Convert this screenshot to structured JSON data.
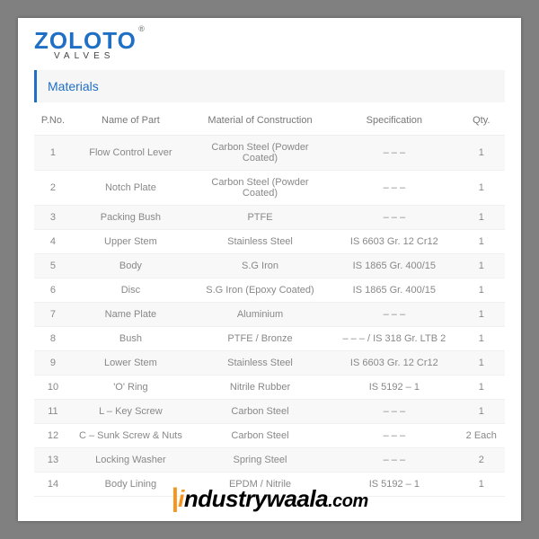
{
  "brand": {
    "name": "ZOLOTO",
    "sub": "VALVES"
  },
  "section_title": "Materials",
  "table": {
    "columns": [
      "P.No.",
      "Name of Part",
      "Material of Construction",
      "Specification",
      "Qty."
    ],
    "rows": [
      [
        "1",
        "Flow Control Lever",
        "Carbon Steel (Powder Coated)",
        "– – –",
        "1"
      ],
      [
        "2",
        "Notch Plate",
        "Carbon Steel (Powder Coated)",
        "– – –",
        "1"
      ],
      [
        "3",
        "Packing Bush",
        "PTFE",
        "– – –",
        "1"
      ],
      [
        "4",
        "Upper Stem",
        "Stainless Steel",
        "IS 6603 Gr. 12 Cr12",
        "1"
      ],
      [
        "5",
        "Body",
        "S.G Iron",
        "IS 1865 Gr. 400/15",
        "1"
      ],
      [
        "6",
        "Disc",
        "S.G Iron (Epoxy Coated)",
        "IS 1865 Gr. 400/15",
        "1"
      ],
      [
        "7",
        "Name Plate",
        "Aluminium",
        "– – –",
        "1"
      ],
      [
        "8",
        "Bush",
        "PTFE / Bronze",
        "– – – / IS 318 Gr. LTB 2",
        "1"
      ],
      [
        "9",
        "Lower Stem",
        "Stainless Steel",
        "IS 6603 Gr. 12 Cr12",
        "1"
      ],
      [
        "10",
        "'O' Ring",
        "Nitrile Rubber",
        "IS 5192 – 1",
        "1"
      ],
      [
        "11",
        "L – Key Screw",
        "Carbon Steel",
        "– – –",
        "1"
      ],
      [
        "12",
        "C – Sunk Screw & Nuts",
        "Carbon Steel",
        "– – –",
        "2 Each"
      ],
      [
        "13",
        "Locking Washer",
        "Spring Steel",
        "– – –",
        "2"
      ],
      [
        "14",
        "Body Lining",
        "EPDM / Nitrile",
        "IS 5192 – 1",
        "1"
      ]
    ]
  },
  "footer": {
    "text": "industrywaala.com"
  }
}
